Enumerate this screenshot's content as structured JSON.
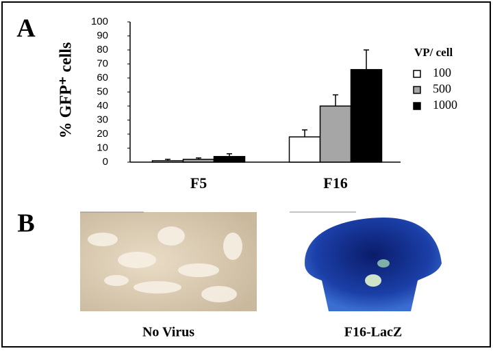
{
  "panel_a_label": "A",
  "panel_b_label": "B",
  "chart_data": {
    "type": "bar",
    "ylabel": "% GFP⁺ cells",
    "categories": [
      "F5",
      "F16"
    ],
    "legend_title": "VP/ cell",
    "series": [
      {
        "name": "100",
        "color": "#ffffff",
        "values": [
          1,
          18
        ],
        "errors": [
          1,
          5
        ]
      },
      {
        "name": "500",
        "color": "#a6a6a6",
        "values": [
          2,
          40
        ],
        "errors": [
          1,
          8
        ]
      },
      {
        "name": "1000",
        "color": "#000000",
        "values": [
          4,
          66
        ],
        "errors": [
          2,
          14
        ]
      }
    ],
    "ylim": [
      0,
      100
    ],
    "yticks": [
      0,
      10,
      20,
      30,
      40,
      50,
      60,
      70,
      80,
      90,
      100
    ]
  },
  "images": [
    {
      "caption": "No Virus"
    },
    {
      "caption": "F16-LacZ"
    }
  ]
}
